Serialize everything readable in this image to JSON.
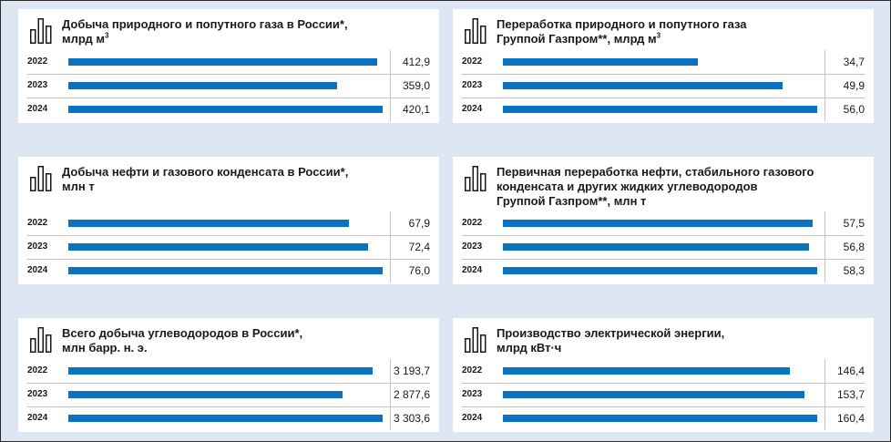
{
  "chart_data": [
    {
      "type": "bar",
      "title": "Добыча природного и попутного газа в России*, млрд м³",
      "categories": [
        "2022",
        "2023",
        "2024"
      ],
      "values": [
        412.9,
        359.0,
        420.1
      ],
      "value_labels": [
        "412,9",
        "359,0",
        "420,1"
      ],
      "xlim": [
        0,
        420.1
      ]
    },
    {
      "type": "bar",
      "title": "Переработка природного и попутного газа Группой Газпром**, млрд м³",
      "categories": [
        "2022",
        "2023",
        "2024"
      ],
      "values": [
        34.7,
        49.9,
        56.0
      ],
      "value_labels": [
        "34,7",
        "49,9",
        "56,0"
      ],
      "xlim": [
        0,
        56.0
      ]
    },
    {
      "type": "bar",
      "title": "Добыча нефти и газового конденсата в России*, млн т",
      "categories": [
        "2022",
        "2023",
        "2024"
      ],
      "values": [
        67.9,
        72.4,
        76.0
      ],
      "value_labels": [
        "67,9",
        "72,4",
        "76,0"
      ],
      "xlim": [
        0,
        76.0
      ]
    },
    {
      "type": "bar",
      "title": "Первичная переработка нефти, стабильного газового конденсата и других жидких углеводородов Группой Газпром**, млн т",
      "categories": [
        "2022",
        "2023",
        "2024"
      ],
      "values": [
        57.5,
        56.8,
        58.3
      ],
      "value_labels": [
        "57,5",
        "56,8",
        "58,3"
      ],
      "xlim": [
        0,
        58.3
      ]
    },
    {
      "type": "bar",
      "title": "Всего добыча углеводородов в России*, млн барр. н. э.",
      "categories": [
        "2022",
        "2023",
        "2024"
      ],
      "values": [
        3193.7,
        2877.6,
        3303.6
      ],
      "value_labels": [
        "3 193,7",
        "2 877,6",
        "3 303,6"
      ],
      "xlim": [
        0,
        3303.6
      ]
    },
    {
      "type": "bar",
      "title": "Производство электрической энергии, млрд кВт·ч",
      "categories": [
        "2022",
        "2023",
        "2024"
      ],
      "values": [
        146.4,
        153.7,
        160.4
      ],
      "value_labels": [
        "146,4",
        "153,7",
        "160,4"
      ],
      "xlim": [
        0,
        160.4
      ]
    }
  ],
  "panels": [
    {
      "title_line1": "Добыча природного и попутного газа в России*,",
      "title_line2": "млрд м",
      "title_sup": "3",
      "title_line3": ""
    },
    {
      "title_line1": "Переработка природного и попутного газа",
      "title_line2": "Группой Газпром**, млрд м",
      "title_sup": "3",
      "title_line3": ""
    },
    {
      "title_line1": "Добыча нефти и газового конденсата в России*,",
      "title_line2": "млн т",
      "title_sup": "",
      "title_line3": ""
    },
    {
      "title_line1": "Первичная переработка нефти, стабильного газового",
      "title_line2": "конденсата и других жидких углеводородов",
      "title_sup": "",
      "title_line3": "Группой Газпром**, млн т"
    },
    {
      "title_line1": "Всего добыча углеводородов в России*,",
      "title_line2": "млн барр. н. э.",
      "title_sup": "",
      "title_line3": ""
    },
    {
      "title_line1": "Производство электрической энергии,",
      "title_line2": "млрд кВт·ч",
      "title_sup": "",
      "title_line3": ""
    }
  ],
  "colors": {
    "bar": "#0a73c1",
    "background": "#dde7f3",
    "panel": "#ffffff"
  },
  "icon": "bar-chart-icon"
}
